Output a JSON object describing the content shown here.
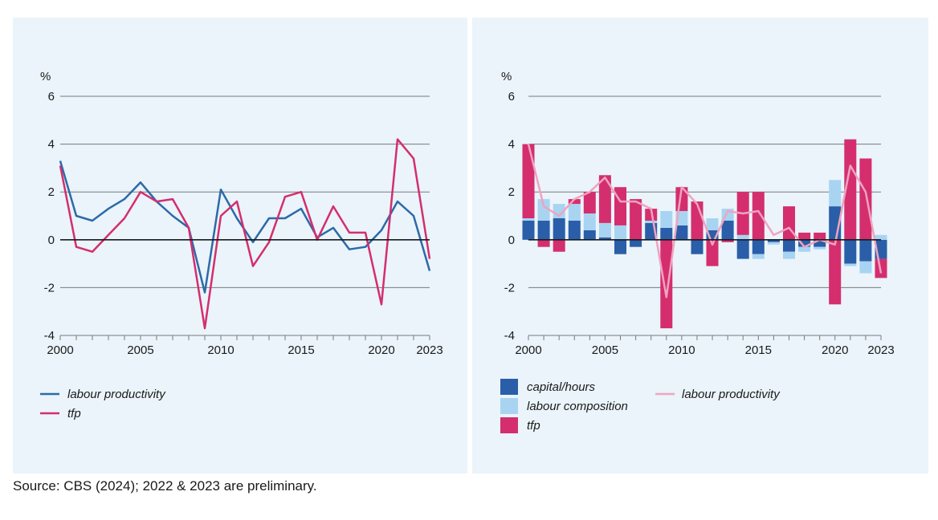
{
  "source_note": "Source: CBS (2024); 2022 & 2023 are preliminary.",
  "colors": {
    "panel_bg": "#eaf4fa",
    "grid": "#7a7a7a",
    "zero_line": "#1a1a1a",
    "labour_productivity_line": "#2d6aa8",
    "tfp": "#d42e6e",
    "capital_hours": "#2a5ea8",
    "labour_composition": "#a8d4f2",
    "labour_productivity_light": "#f0a3bf"
  },
  "chart_data": [
    {
      "type": "line",
      "unit_label": "%",
      "x": [
        2000,
        2001,
        2002,
        2003,
        2004,
        2005,
        2006,
        2007,
        2008,
        2009,
        2010,
        2011,
        2012,
        2013,
        2014,
        2015,
        2016,
        2017,
        2018,
        2019,
        2020,
        2021,
        2022,
        2023
      ],
      "x_tick_labels": [
        "2000",
        "2005",
        "2010",
        "2015",
        "2020",
        "2023"
      ],
      "x_tick_values": [
        2000,
        2005,
        2010,
        2015,
        2020,
        2023
      ],
      "y_tick_labels": [
        "6",
        "4",
        "2",
        "0",
        "-2",
        "-4"
      ],
      "ylim": [
        -4,
        6
      ],
      "grid": true,
      "legend_position": "bottom-left",
      "series": [
        {
          "name": "labour productivity",
          "color_key": "labour_productivity_line",
          "values": [
            3.3,
            1.0,
            0.8,
            1.3,
            1.7,
            2.4,
            1.6,
            1.0,
            0.5,
            -2.2,
            2.1,
            0.9,
            -0.1,
            0.9,
            0.9,
            1.3,
            0.1,
            0.5,
            -0.4,
            -0.3,
            0.4,
            1.6,
            1.0,
            -1.3
          ]
        },
        {
          "name": "tfp",
          "color_key": "tfp",
          "values": [
            3.1,
            -0.3,
            -0.5,
            0.2,
            0.9,
            2.0,
            1.6,
            1.7,
            0.5,
            -3.7,
            1.0,
            1.6,
            -1.1,
            -0.1,
            1.8,
            2.0,
            0.0,
            1.4,
            0.3,
            0.3,
            -2.7,
            4.2,
            3.4,
            -0.8
          ]
        }
      ]
    },
    {
      "type": "bar",
      "stacked": true,
      "unit_label": "%",
      "x": [
        2000,
        2001,
        2002,
        2003,
        2004,
        2005,
        2006,
        2007,
        2008,
        2009,
        2010,
        2011,
        2012,
        2013,
        2014,
        2015,
        2016,
        2017,
        2018,
        2019,
        2020,
        2021,
        2022,
        2023
      ],
      "x_tick_labels": [
        "2000",
        "2005",
        "2010",
        "2015",
        "2020",
        "2023"
      ],
      "x_tick_values": [
        2000,
        2005,
        2010,
        2015,
        2020,
        2023
      ],
      "y_tick_labels": [
        "6",
        "4",
        "2",
        "0",
        "-2",
        "-4"
      ],
      "ylim": [
        -4,
        6
      ],
      "grid": true,
      "legend_position": "bottom",
      "series": [
        {
          "name": "capital/hours",
          "color_key": "capital_hours",
          "values": [
            0.8,
            0.8,
            0.9,
            0.8,
            0.4,
            0.1,
            -0.6,
            -0.3,
            0.7,
            0.5,
            0.6,
            -0.6,
            0.4,
            0.8,
            -0.8,
            -0.6,
            -0.1,
            -0.5,
            -0.3,
            -0.3,
            1.4,
            -1.0,
            -0.9,
            -0.8
          ]
        },
        {
          "name": "labour composition",
          "color_key": "labour_composition",
          "values": [
            0.1,
            0.9,
            0.6,
            0.7,
            0.7,
            0.6,
            0.6,
            0.0,
            0.1,
            0.7,
            0.6,
            0.0,
            0.5,
            0.5,
            0.2,
            -0.2,
            -0.1,
            -0.3,
            -0.2,
            -0.1,
            1.1,
            -0.1,
            -0.5,
            0.2
          ]
        },
        {
          "name": "tfp",
          "color_key": "tfp",
          "values": [
            3.1,
            -0.3,
            -0.5,
            0.2,
            0.9,
            2.0,
            1.6,
            1.7,
            0.5,
            -3.7,
            1.0,
            1.6,
            -1.1,
            -0.1,
            1.8,
            2.0,
            0.0,
            1.4,
            0.3,
            0.3,
            -2.7,
            4.2,
            3.4,
            -0.8
          ]
        }
      ],
      "line_series": [
        {
          "name": "labour productivity",
          "color_key": "labour_productivity_light",
          "values": [
            4.0,
            1.4,
            1.0,
            1.7,
            2.0,
            2.6,
            1.6,
            1.6,
            1.3,
            -2.4,
            2.2,
            1.5,
            -0.2,
            1.2,
            1.1,
            1.2,
            0.2,
            0.5,
            -0.3,
            0.0,
            -0.2,
            3.1,
            2.0,
            -1.4
          ]
        }
      ]
    }
  ]
}
